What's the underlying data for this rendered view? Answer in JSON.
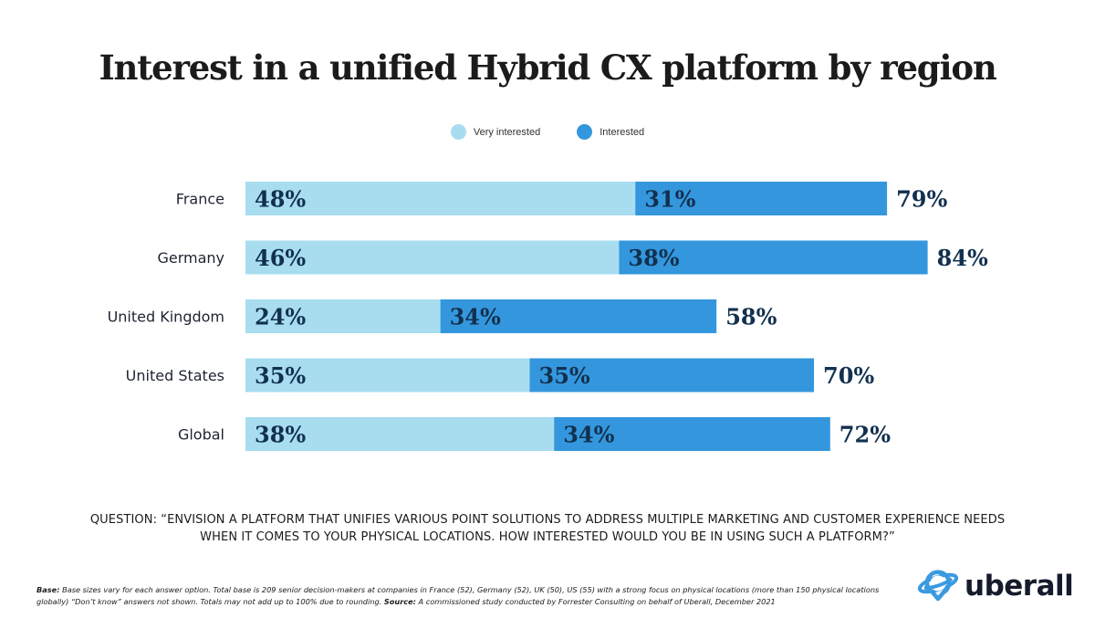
{
  "chart_data": {
    "type": "bar",
    "orientation": "horizontal",
    "stacked": true,
    "title": "Interest in a unified Hybrid CX platform by region",
    "categories": [
      "France",
      "Germany",
      "United Kingdom",
      "United States",
      "Global"
    ],
    "series": [
      {
        "name": "Very interested",
        "color": "#a8ddf0",
        "values": [
          48,
          46,
          24,
          35,
          38
        ]
      },
      {
        "name": "Interested",
        "color": "#3497dd",
        "values": [
          31,
          38,
          34,
          35,
          34
        ]
      }
    ],
    "totals": [
      79,
      84,
      58,
      70,
      72
    ],
    "value_suffix": "%",
    "xlabel": "",
    "ylabel": "",
    "xlim": [
      0,
      100
    ],
    "grid": false,
    "legend_position": "top-center"
  },
  "question": "QUESTION: “ENVISION A PLATFORM THAT UNIFIES VARIOUS POINT SOLUTIONS TO ADDRESS MULTIPLE MARKETING AND CUSTOMER EXPERIENCE NEEDS WHEN IT COMES TO YOUR PHYSICAL LOCATIONS. HOW INTERESTED WOULD YOU BE IN USING SUCH A PLATFORM?”",
  "footnote": {
    "base_label": "Base:",
    "base_text": " Base sizes vary for each answer option. Total base is 209 senior decision-makers at companies in France (52), Germany (52), UK (50), US (55) with a strong focus on physical locations (more than 150 physical locations globally) “Don’t know” answers not shown. Totals may not add up to 100% due to rounding. ",
    "source_label": "Source:",
    "source_text": " A commissioned study conducted by Forrester Consulting on behalf of Uberall, December 2021"
  },
  "logo": {
    "text": "uberall",
    "icon": "planet-pin-icon",
    "color": "#3a9ae0"
  },
  "colors": {
    "text_dark": "#12304f"
  }
}
